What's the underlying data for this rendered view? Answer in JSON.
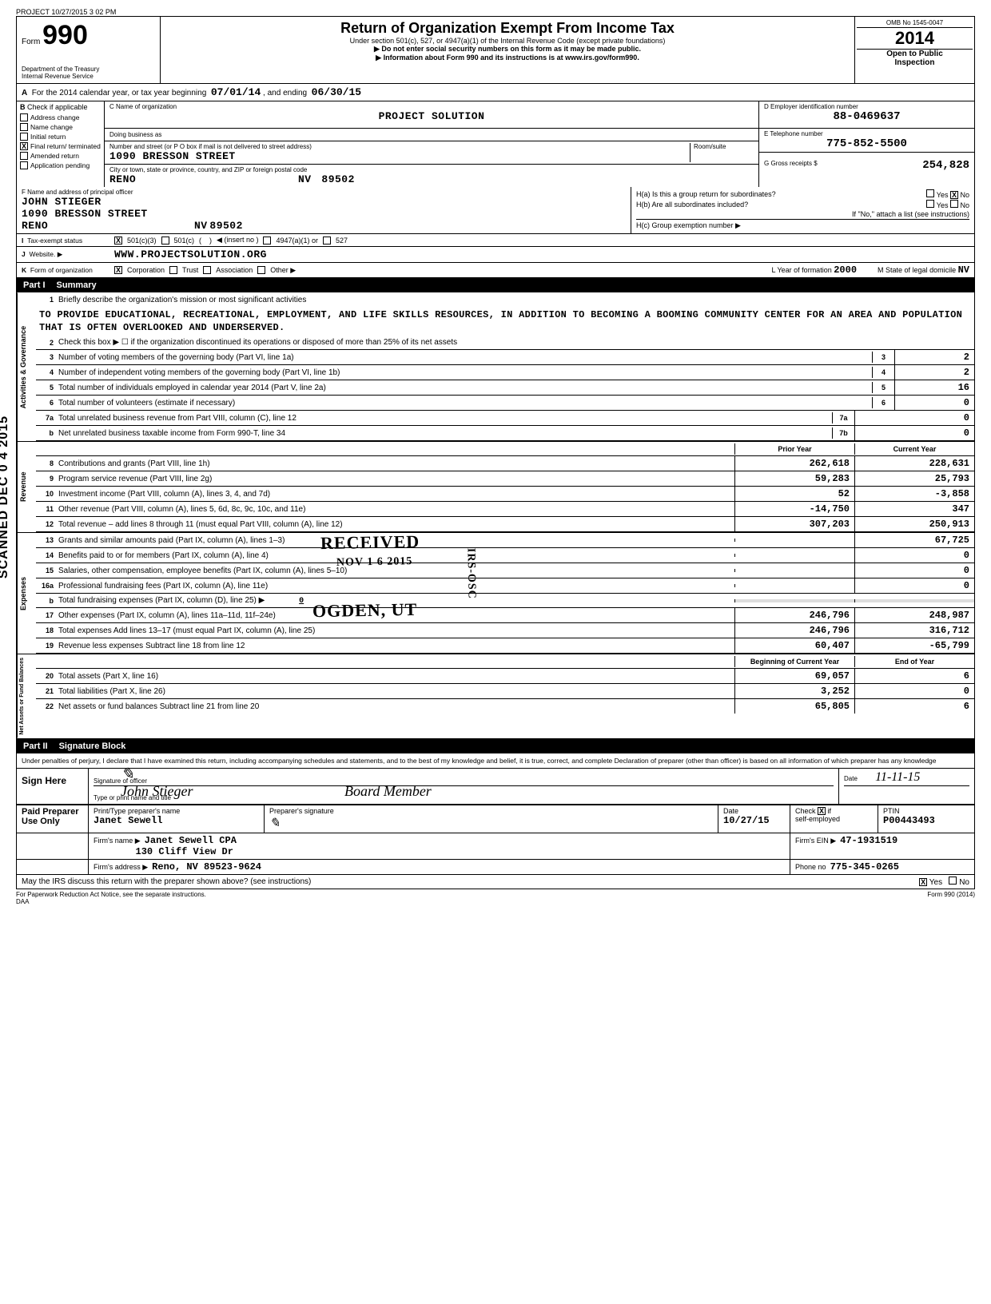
{
  "meta": {
    "project_stamp": "PROJECT 10/27/2015 3 02 PM",
    "scanned_side": "SCANNED DEC 0 4 2015"
  },
  "header": {
    "form_prefix": "Form",
    "form_number": "990",
    "dept1": "Department of the Treasury",
    "dept2": "Internal Revenue Service",
    "title": "Return of Organization Exempt From Income Tax",
    "subtitle": "Under section 501(c), 527, or 4947(a)(1) of the Internal Revenue Code (except private foundations)",
    "ssn_note": "▶ Do not enter social security numbers on this form as it may be made public.",
    "info_note": "▶ Information about Form 990 and its instructions is at www.irs.gov/form990.",
    "omb": "OMB No 1545-0047",
    "year": "2014",
    "open1": "Open to Public",
    "open2": "Inspection"
  },
  "rowA": {
    "prefix": "A",
    "text": "For the 2014 calendar year, or tax year beginning",
    "begin": "07/01/14",
    "mid": ", and ending",
    "end": "06/30/15"
  },
  "colB": {
    "hdr_letter": "B",
    "hdr_text": "Check if applicable",
    "items": [
      {
        "label": "Address change",
        "checked": false
      },
      {
        "label": "Name change",
        "checked": false
      },
      {
        "label": "Initial return",
        "checked": false
      },
      {
        "label": "Final return/ terminated",
        "checked": true
      },
      {
        "label": "Amended return",
        "checked": false
      },
      {
        "label": "Application pending",
        "checked": false
      }
    ]
  },
  "colC": {
    "name_label": "C  Name of organization",
    "name": "PROJECT SOLUTION",
    "dba_label": "Doing business as",
    "dba": "",
    "street_label": "Number and street (or P O  box if mail is not delivered to street address)",
    "room_label": "Room/suite",
    "street": "1090 BRESSON STREET",
    "city_label": "City or town, state or province, country, and ZIP or foreign postal code",
    "city": "RENO",
    "state": "NV",
    "zip": "89502"
  },
  "colD": {
    "ein_label": "D  Employer identification number",
    "ein": "88-0469637",
    "tel_label": "E  Telephone number",
    "tel": "775-852-5500",
    "gross_label": "G  Gross receipts $",
    "gross": "254,828"
  },
  "rowF": {
    "label": "F  Name and address of principal officer",
    "name": "JOHN STIEGER",
    "street": "1090 BRESSON STREET",
    "city": "RENO",
    "state": "NV",
    "zip": "89502",
    "ha_label": "H(a) Is this a group return for subordinates?",
    "ha_yes": "Yes",
    "ha_no": "No",
    "ha_no_checked": true,
    "hb_label": "H(b) Are all subordinates included?",
    "hb_yes": "Yes",
    "hb_no": "No",
    "hb_note": "If \"No,\" attach a list (see instructions)",
    "hc_label": "H(c) Group exemption number ▶"
  },
  "rowI": {
    "letter": "I",
    "label": "Tax-exempt status",
    "opt1": "501(c)(3)",
    "opt1_checked": true,
    "opt2": "501(c)",
    "insert": "◀ (insert no )",
    "opt3": "4947(a)(1) or",
    "opt4": "527"
  },
  "rowJ": {
    "letter": "J",
    "label": "Website. ▶",
    "value": "WWW.PROJECTSOLUTION.ORG"
  },
  "rowK": {
    "letter": "K",
    "label": "Form of organization",
    "corp": "Corporation",
    "corp_checked": true,
    "trust": "Trust",
    "assoc": "Association",
    "other": "Other ▶",
    "l_label": "L  Year of formation",
    "l_val": "2000",
    "m_label": "M  State of legal domicile",
    "m_val": "NV"
  },
  "partI": {
    "num": "Part I",
    "title": "Summary",
    "side_activities": "Activities & Governance",
    "side_revenue": "Revenue",
    "side_expenses": "Expenses",
    "side_net": "Net Assets or Fund Balances",
    "line1_label": "1",
    "line1_text": "Briefly describe the organization's mission or most significant activities",
    "mission": "TO PROVIDE EDUCATIONAL, RECREATIONAL, EMPLOYMENT, AND LIFE SKILLS RESOURCES, IN ADDITION TO BECOMING A BOOMING COMMUNITY CENTER FOR AN AREA AND POPULATION THAT IS OFTEN OVERLOOKED AND UNDERSERVED.",
    "line2": "Check this box ▶ ☐  if the organization discontinued its operations or disposed of more than 25% of its net assets",
    "lines_small": [
      {
        "n": "3",
        "text": "Number of voting members of the governing body (Part VI, line 1a)",
        "box": "3",
        "val": "2"
      },
      {
        "n": "4",
        "text": "Number of independent voting members of the governing body (Part VI, line 1b)",
        "box": "4",
        "val": "2"
      },
      {
        "n": "5",
        "text": "Total number of individuals employed in calendar year 2014 (Part V, line 2a)",
        "box": "5",
        "val": "16"
      },
      {
        "n": "6",
        "text": "Total number of volunteers (estimate if necessary)",
        "box": "6",
        "val": "0"
      },
      {
        "n": "7a",
        "text": "Total unrelated business revenue from Part VIII, column (C), line 12",
        "box": "7a",
        "val": "0",
        "wide": true
      },
      {
        "n": "b",
        "text": "Net unrelated business taxable income from Form 990-T, line 34",
        "box": "7b",
        "val": "0",
        "wide": true
      }
    ],
    "col_prior": "Prior Year",
    "col_current": "Current Year",
    "revenue_lines": [
      {
        "n": "8",
        "text": "Contributions and grants (Part VIII, line 1h)",
        "prior": "262,618",
        "curr": "228,631"
      },
      {
        "n": "9",
        "text": "Program service revenue (Part VIII, line 2g)",
        "prior": "59,283",
        "curr": "25,793"
      },
      {
        "n": "10",
        "text": "Investment income (Part VIII, column (A), lines 3, 4, and 7d)",
        "prior": "52",
        "curr": "-3,858"
      },
      {
        "n": "11",
        "text": "Other revenue (Part VIII, column (A), lines 5, 6d, 8c, 9c, 10c, and 11e)",
        "prior": "-14,750",
        "curr": "347"
      },
      {
        "n": "12",
        "text": "Total revenue – add lines 8 through 11 (must equal Part VIII, column (A), line 12)",
        "prior": "307,203",
        "curr": "250,913"
      }
    ],
    "expense_lines": [
      {
        "n": "13",
        "text": "Grants and similar amounts paid (Part IX, column (A), lines 1–3)",
        "prior": "",
        "curr": "67,725"
      },
      {
        "n": "14",
        "text": "Benefits paid to or for members (Part IX, column (A), line 4)",
        "prior": "",
        "curr": "0"
      },
      {
        "n": "15",
        "text": "Salaries, other compensation, employee benefits (Part IX, column (A), lines 5–10)",
        "prior": "",
        "curr": "0"
      },
      {
        "n": "16a",
        "text": "Professional fundraising fees (Part IX, column (A), line 11e)",
        "prior": "",
        "curr": "0"
      },
      {
        "n": "b",
        "text": "Total fundraising expenses (Part IX, column (D), line 25) ▶",
        "inline_val": "0",
        "shaded": true
      },
      {
        "n": "17",
        "text": "Other expenses (Part IX, column (A), lines 11a–11d, 11f–24e)",
        "prior": "246,796",
        "curr": "248,987"
      },
      {
        "n": "18",
        "text": "Total expenses  Add lines 13–17 (must equal Part IX, column (A), line 25)",
        "prior": "246,796",
        "curr": "316,712"
      },
      {
        "n": "19",
        "text": "Revenue less expenses  Subtract line 18 from line 12",
        "prior": "60,407",
        "curr": "-65,799"
      }
    ],
    "col_begin": "Beginning of Current Year",
    "col_end": "End of Year",
    "net_lines": [
      {
        "n": "20",
        "text": "Total assets (Part X, line 16)",
        "prior": "69,057",
        "curr": "6"
      },
      {
        "n": "21",
        "text": "Total liabilities (Part X, line 26)",
        "prior": "3,252",
        "curr": "0"
      },
      {
        "n": "22",
        "text": "Net assets or fund balances  Subtract line 21 from line 20",
        "prior": "65,805",
        "curr": "6"
      }
    ],
    "received_stamp": "RECEIVED",
    "received_date": "NOV 1 6 2015",
    "ogden_stamp": "OGDEN, UT",
    "irs_osc": "IRS-OSC"
  },
  "partII": {
    "num": "Part II",
    "title": "Signature Block",
    "declaration": "Under penalties of perjury, I declare that I have examined this return, including accompanying schedules and statements, and to the best of my knowledge and belief, it is true, correct, and complete  Declaration of preparer (other than officer) is based on all information of which preparer has any knowledge",
    "sign_here": "Sign Here",
    "sig_label1": "Signature of officer",
    "sig_label2": "Type or print name and title",
    "date_label": "Date",
    "officer_name": "John Stieger",
    "officer_title": "Board Member",
    "officer_date": "11-11-15",
    "paid_label": "Paid Preparer Use Only",
    "prep_name_label": "Print/Type preparer's name",
    "prep_name": "Janet Sewell",
    "prep_sig_label": "Preparer's signature",
    "prep_date_label": "Date",
    "prep_date": "10/27/15",
    "check_label": "Check",
    "self_emp": "self-employed",
    "self_emp_checked": true,
    "ptin_label": "PTIN",
    "ptin": "P00443493",
    "firm_name_label": "Firm's name   ▶",
    "firm_name": "Janet Sewell CPA",
    "firm_ein_label": "Firm's EIN ▶",
    "firm_ein": "47-1931519",
    "firm_addr_label": "Firm's address   ▶",
    "firm_addr1": "130 Cliff View Dr",
    "firm_addr2": "Reno, NV   89523-9624",
    "phone_label": "Phone no",
    "phone": "775-345-0265",
    "discuss": "May the IRS discuss this return with the preparer shown above? (see instructions)",
    "discuss_yes": "Yes",
    "discuss_yes_checked": true,
    "discuss_no": "No"
  },
  "footer": {
    "paperwork": "For Paperwork Reduction Act Notice, see the separate instructions.",
    "daa": "DAA",
    "form_note": "Form 990 (2014)"
  },
  "colors": {
    "black": "#000000",
    "shade": "#dddddd",
    "white": "#ffffff"
  }
}
